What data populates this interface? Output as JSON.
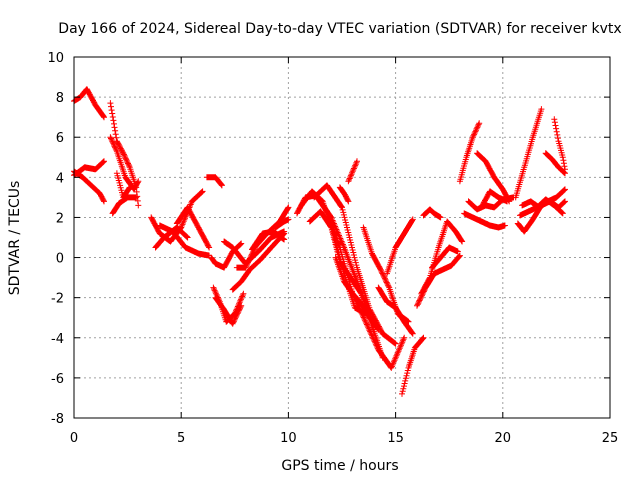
{
  "chart_data": {
    "type": "scatter",
    "title": "Day 166 of 2024, Sidereal Day-to-day VTEC variation (SDTVAR) for receiver kvtx",
    "xlabel": "GPS time / hours",
    "ylabel": "SDTVAR / TECUs",
    "xlim": [
      0,
      25
    ],
    "ylim": [
      -8,
      10
    ],
    "xticks": [
      0,
      5,
      10,
      15,
      20,
      25
    ],
    "yticks": [
      -8,
      -6,
      -4,
      -2,
      0,
      2,
      4,
      6,
      8,
      10
    ],
    "grid": true,
    "marker": "+",
    "color": "#ff0000",
    "series": [
      {
        "x": [
          0.0,
          0.3,
          0.6,
          1.0,
          1.4
        ],
        "y": [
          7.8,
          8.0,
          8.4,
          7.6,
          7.0
        ]
      },
      {
        "x": [
          0.0,
          0.4,
          0.8,
          1.2,
          1.4
        ],
        "y": [
          4.3,
          4.0,
          3.6,
          3.2,
          2.8
        ]
      },
      {
        "x": [
          0.0,
          0.5,
          1.0,
          1.4
        ],
        "y": [
          4.1,
          4.5,
          4.4,
          4.8
        ]
      },
      {
        "x": [
          1.7,
          2.0,
          2.3,
          2.6,
          2.9,
          3.0
        ],
        "y": [
          7.7,
          5.8,
          5.2,
          4.5,
          3.5,
          2.6
        ]
      },
      {
        "x": [
          1.7,
          2.0,
          2.4,
          2.8,
          3.0
        ],
        "y": [
          6.0,
          5.3,
          4.0,
          3.4,
          3.8
        ]
      },
      {
        "x": [
          1.8,
          2.1,
          2.5,
          2.9
        ],
        "y": [
          2.2,
          2.7,
          3.0,
          3.0
        ]
      },
      {
        "x": [
          2.0,
          2.3,
          2.6
        ],
        "y": [
          4.2,
          3.0,
          3.5
        ]
      },
      {
        "x": [
          3.6,
          4.0,
          4.5,
          5.0,
          5.5,
          6.0
        ],
        "y": [
          2.0,
          1.2,
          0.8,
          1.5,
          2.8,
          3.3
        ]
      },
      {
        "x": [
          3.8,
          4.2,
          4.8,
          5.3
        ],
        "y": [
          0.5,
          1.0,
          1.5,
          1.0
        ]
      },
      {
        "x": [
          4.0,
          4.6,
          5.2,
          5.8,
          6.3
        ],
        "y": [
          1.6,
          1.3,
          0.5,
          0.2,
          0.1
        ]
      },
      {
        "x": [
          4.8,
          5.3,
          5.8,
          6.3
        ],
        "y": [
          1.7,
          2.5,
          1.5,
          0.5
        ]
      },
      {
        "x": [
          6.2,
          6.6,
          6.9
        ],
        "y": [
          4.0,
          4.0,
          3.6
        ]
      },
      {
        "x": [
          6.4,
          6.6,
          7.0,
          7.4,
          7.8
        ],
        "y": [
          0.0,
          -0.3,
          -0.5,
          0.3,
          0.7
        ]
      },
      {
        "x": [
          6.5,
          6.8,
          7.1,
          7.5,
          7.9
        ],
        "y": [
          -1.5,
          -2.2,
          -3.2,
          -2.8,
          -1.8
        ]
      },
      {
        "x": [
          6.6,
          7.0,
          7.4,
          7.8
        ],
        "y": [
          -2.0,
          -2.6,
          -3.3,
          -2.4
        ]
      },
      {
        "x": [
          7.0,
          7.4,
          8.0,
          8.6,
          9.2,
          9.8
        ],
        "y": [
          0.8,
          0.5,
          -0.3,
          0.3,
          1.0,
          1.3
        ]
      },
      {
        "x": [
          7.4,
          7.8,
          8.2,
          8.7,
          9.2,
          9.8
        ],
        "y": [
          -1.6,
          -1.2,
          -0.6,
          -0.1,
          0.5,
          1.2
        ]
      },
      {
        "x": [
          7.6,
          8.0,
          8.5,
          9.0,
          9.6,
          10.0
        ],
        "y": [
          -0.5,
          -0.5,
          0.6,
          1.2,
          1.8,
          2.5
        ]
      },
      {
        "x": [
          8.3,
          8.8,
          9.3,
          9.8
        ],
        "y": [
          0.4,
          1.2,
          1.3,
          0.9
        ]
      },
      {
        "x": [
          9.4,
          9.8,
          10.0
        ],
        "y": [
          1.5,
          1.8,
          1.9
        ]
      },
      {
        "x": [
          10.4,
          10.8,
          11.3,
          11.8,
          12.4,
          13.0,
          13.6,
          14.2,
          14.8,
          15.4
        ],
        "y": [
          2.2,
          3.0,
          3.1,
          2.3,
          0.5,
          -1.8,
          -3.2,
          -4.6,
          -5.5,
          -4.0
        ]
      },
      {
        "x": [
          10.6,
          11.1,
          11.6,
          12.1,
          12.6,
          13.1,
          13.6
        ],
        "y": [
          2.6,
          3.3,
          2.8,
          1.2,
          -0.8,
          -2.5,
          -2.8
        ]
      },
      {
        "x": [
          11.0,
          11.5,
          12.0,
          12.4,
          12.9,
          13.4,
          13.9,
          14.4
        ],
        "y": [
          1.8,
          2.3,
          1.5,
          -0.2,
          -1.0,
          -1.8,
          -3.4,
          -5.0
        ]
      },
      {
        "x": [
          11.2,
          11.8,
          12.5,
          13.2,
          13.8,
          14.4,
          15.0
        ],
        "y": [
          3.0,
          3.6,
          2.5,
          -0.5,
          -2.6,
          -3.8,
          -4.3
        ]
      },
      {
        "x": [
          11.4,
          12.0,
          12.6,
          13.2,
          13.8
        ],
        "y": [
          2.9,
          2.0,
          0.5,
          -1.2,
          -2.8
        ]
      },
      {
        "x": [
          12.2,
          12.6,
          13.0,
          13.4,
          13.8,
          14.2
        ],
        "y": [
          0.0,
          -1.2,
          -1.8,
          -2.3,
          -3.0,
          -3.6
        ]
      },
      {
        "x": [
          12.8,
          13.0,
          13.2
        ],
        "y": [
          3.8,
          4.3,
          4.8
        ]
      },
      {
        "x": [
          12.4,
          12.6,
          12.8
        ],
        "y": [
          3.5,
          3.2,
          2.8
        ]
      },
      {
        "x": [
          13.5,
          13.9,
          14.3,
          14.7,
          15.1,
          15.6
        ],
        "y": [
          1.5,
          0.2,
          -0.6,
          -1.5,
          -2.8,
          -3.2
        ]
      },
      {
        "x": [
          14.2,
          14.6,
          15.0,
          15.4,
          15.8
        ],
        "y": [
          -1.5,
          -2.2,
          -2.5,
          -3.2,
          -3.8
        ]
      },
      {
        "x": [
          14.6,
          15.0,
          15.4,
          15.8
        ],
        "y": [
          -0.8,
          0.5,
          1.2,
          1.9
        ]
      },
      {
        "x": [
          15.3,
          15.6,
          15.9,
          16.3
        ],
        "y": [
          -6.8,
          -5.5,
          -4.5,
          -4.0
        ]
      },
      {
        "x": [
          16.0,
          16.4,
          16.8,
          17.2,
          17.6,
          18.0
        ],
        "y": [
          -2.4,
          -1.5,
          -0.8,
          -0.6,
          -0.4,
          0.1
        ]
      },
      {
        "x": [
          16.2,
          16.6,
          17.0,
          17.4,
          17.8,
          18.1
        ],
        "y": [
          -1.8,
          -1.0,
          0.5,
          1.8,
          1.3,
          0.8
        ]
      },
      {
        "x": [
          16.3,
          16.6,
          16.8,
          17.1
        ],
        "y": [
          2.1,
          2.4,
          2.2,
          2.0
        ]
      },
      {
        "x": [
          16.7,
          17.1,
          17.5,
          17.9
        ],
        "y": [
          -0.5,
          0.0,
          0.5,
          0.3
        ]
      },
      {
        "x": [
          18.0,
          18.3,
          18.6,
          18.9
        ],
        "y": [
          3.8,
          5.0,
          6.0,
          6.7
        ]
      },
      {
        "x": [
          18.2,
          18.6,
          19.0,
          19.4,
          19.8,
          20.1
        ],
        "y": [
          2.2,
          2.0,
          1.8,
          1.6,
          1.5,
          1.6
        ]
      },
      {
        "x": [
          18.4,
          18.8,
          19.2,
          19.6,
          20.0,
          20.5
        ],
        "y": [
          2.8,
          2.4,
          2.6,
          2.5,
          2.9,
          3.0
        ]
      },
      {
        "x": [
          18.8,
          19.2,
          19.6,
          20.0,
          20.3
        ],
        "y": [
          5.2,
          4.8,
          4.0,
          3.4,
          2.8
        ]
      },
      {
        "x": [
          19.0,
          19.4,
          19.8,
          20.2
        ],
        "y": [
          2.5,
          3.3,
          3.0,
          2.8
        ]
      },
      {
        "x": [
          20.6,
          21.0,
          21.4,
          21.8
        ],
        "y": [
          3.0,
          4.5,
          6.0,
          7.4
        ]
      },
      {
        "x": [
          20.7,
          21.0,
          21.4,
          21.8,
          22.2,
          22.6,
          22.9
        ],
        "y": [
          1.7,
          1.3,
          1.9,
          2.6,
          2.8,
          2.5,
          2.8
        ]
      },
      {
        "x": [
          20.8,
          21.2,
          21.6,
          22.0,
          22.4,
          22.8
        ],
        "y": [
          2.1,
          2.3,
          2.5,
          2.9,
          2.6,
          2.2
        ]
      },
      {
        "x": [
          20.9,
          21.3,
          21.7,
          22.1,
          22.5,
          22.9
        ],
        "y": [
          2.6,
          2.8,
          2.5,
          2.8,
          3.0,
          3.4
        ]
      },
      {
        "x": [
          22.0,
          22.3,
          22.6,
          22.9
        ],
        "y": [
          5.2,
          4.9,
          4.5,
          4.2
        ]
      },
      {
        "x": [
          22.4,
          22.6,
          22.8,
          22.9
        ],
        "y": [
          6.9,
          5.8,
          5.0,
          4.4
        ]
      }
    ]
  }
}
